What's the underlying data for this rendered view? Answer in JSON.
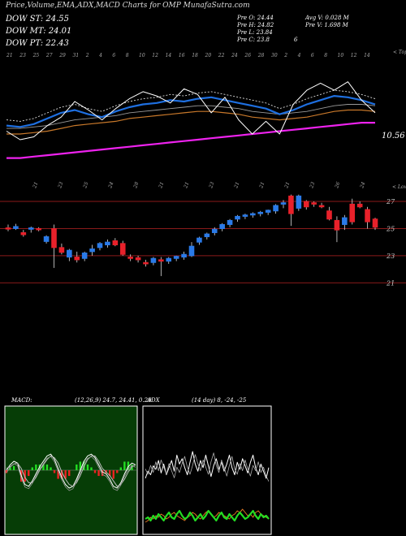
{
  "header": {
    "title": "Price,Volume,EMA,ADX,MACD Charts for OMP MunafaSutra.com",
    "dow_st": "DOW ST: 24.55",
    "dow_mt": "DOW MT: 24.01",
    "dow_pt": "DOW PT: 22.43",
    "pre_o": "Pre   O: 24.44",
    "pre_h": "Pre   H: 24.82",
    "pre_l": "Pre   L: 23.84",
    "pre_c": "Pre   C: 23.8",
    "pre_c_suffix": "6",
    "avg_v": "Avg V: 0.028  M",
    "pre_v": "Pre   V: 1.698  M"
  },
  "colors": {
    "dow_st": "#aaaaaa",
    "dow_mt": "#dddddd",
    "dow_pt": "#ff44ff",
    "ema_blue": "#1e6fe0",
    "ema_orange": "#c8782a",
    "ema_magenta": "#ee22ee",
    "bull": "#2a7ae8",
    "bear": "#e8212a",
    "grid": "#8b1a1a",
    "macd_bg": "#063d06",
    "macd_pos": "#22dd22",
    "macd_neg": "#ee2222",
    "adx_green": "#22dd22",
    "adx_orange": "#dd7722"
  },
  "ema_panel": {
    "top_axis_label": "< Tops",
    "bottom_axis_label": "< Lows",
    "price_label": "10.56",
    "top_dates": [
      "21",
      "23",
      "25",
      "27",
      "29",
      "31",
      "2",
      "4",
      "6",
      "8",
      "10",
      "12",
      "14",
      "16",
      "18",
      "20",
      "22",
      "24",
      "26",
      "28",
      "30",
      "2",
      "4",
      "6",
      "8",
      "10",
      "12",
      "14"
    ],
    "bottom_dates": [
      "21",
      "23",
      "25",
      "24",
      "28",
      "21",
      "21",
      "23",
      "21",
      "21",
      "21",
      "23",
      "26",
      "24"
    ],
    "series_blue": [
      10.4,
      10.3,
      10.5,
      10.9,
      11.3,
      11.5,
      11.2,
      11.0,
      11.4,
      11.7,
      11.9,
      12.0,
      12.2,
      12.1,
      12.3,
      12.4,
      12.2,
      12.0,
      11.8,
      11.6,
      11.2,
      11.5,
      11.9,
      12.2,
      12.5,
      12.4,
      12.2,
      11.9
    ],
    "series_orange": [
      9.8,
      9.8,
      9.9,
      10.0,
      10.2,
      10.4,
      10.5,
      10.6,
      10.7,
      10.9,
      11.0,
      11.1,
      11.2,
      11.3,
      11.4,
      11.4,
      11.3,
      11.2,
      11.0,
      10.9,
      10.8,
      10.9,
      11.0,
      11.2,
      11.4,
      11.5,
      11.5,
      11.4
    ],
    "series_magenta": [
      8.1,
      8.1,
      8.2,
      8.3,
      8.4,
      8.5,
      8.6,
      8.7,
      8.8,
      8.9,
      9.0,
      9.1,
      9.2,
      9.3,
      9.4,
      9.5,
      9.6,
      9.7,
      9.8,
      9.9,
      10.0,
      10.1,
      10.2,
      10.3,
      10.4,
      10.5,
      10.6,
      10.6
    ],
    "series_white": [
      10.0,
      9.4,
      9.6,
      10.4,
      11.0,
      12.1,
      11.5,
      10.8,
      11.6,
      12.3,
      12.8,
      12.5,
      12.0,
      13.0,
      12.6,
      11.3,
      12.4,
      10.8,
      9.8,
      10.7,
      9.8,
      11.9,
      12.9,
      13.4,
      12.9,
      13.5,
      12.2,
      11.3
    ]
  },
  "candles": [
    {
      "o": 25.05,
      "h": 25.3,
      "l": 24.8,
      "c": 25.0
    },
    {
      "o": 25.0,
      "h": 25.35,
      "l": 24.9,
      "c": 25.15
    },
    {
      "o": 24.7,
      "h": 24.9,
      "l": 24.4,
      "c": 24.55
    },
    {
      "o": 24.95,
      "h": 25.15,
      "l": 24.7,
      "c": 25.05
    },
    {
      "o": 25.0,
      "h": 25.1,
      "l": 24.8,
      "c": 24.95
    },
    {
      "o": 24.05,
      "h": 24.5,
      "l": 23.9,
      "c": 24.4
    },
    {
      "o": 25.0,
      "h": 25.3,
      "l": 22.1,
      "c": 23.6
    },
    {
      "o": 23.6,
      "h": 23.9,
      "l": 23.1,
      "c": 23.25
    },
    {
      "o": 22.9,
      "h": 23.5,
      "l": 22.6,
      "c": 23.4
    },
    {
      "o": 22.9,
      "h": 23.3,
      "l": 22.5,
      "c": 22.7
    },
    {
      "o": 22.8,
      "h": 23.3,
      "l": 22.6,
      "c": 23.2
    },
    {
      "o": 23.3,
      "h": 23.8,
      "l": 23.0,
      "c": 23.5
    },
    {
      "o": 23.6,
      "h": 24.0,
      "l": 23.4,
      "c": 23.9
    },
    {
      "o": 23.8,
      "h": 24.2,
      "l": 23.6,
      "c": 24.0
    },
    {
      "o": 24.1,
      "h": 24.3,
      "l": 23.7,
      "c": 23.8
    },
    {
      "o": 23.9,
      "h": 24.1,
      "l": 23.0,
      "c": 23.1
    },
    {
      "o": 22.9,
      "h": 23.1,
      "l": 22.6,
      "c": 22.8
    },
    {
      "o": 22.85,
      "h": 23.0,
      "l": 22.5,
      "c": 22.7
    },
    {
      "o": 22.5,
      "h": 22.7,
      "l": 22.2,
      "c": 22.4
    },
    {
      "o": 22.5,
      "h": 22.9,
      "l": 22.3,
      "c": 22.8
    },
    {
      "o": 22.7,
      "h": 22.9,
      "l": 21.5,
      "c": 22.6
    },
    {
      "o": 22.6,
      "h": 22.9,
      "l": 22.4,
      "c": 22.8
    },
    {
      "o": 22.8,
      "h": 23.0,
      "l": 22.6,
      "c": 22.95
    },
    {
      "o": 22.9,
      "h": 23.3,
      "l": 22.7,
      "c": 23.1
    },
    {
      "o": 23.0,
      "h": 24.0,
      "l": 22.9,
      "c": 23.7
    },
    {
      "o": 24.0,
      "h": 24.4,
      "l": 23.8,
      "c": 24.3
    },
    {
      "o": 24.4,
      "h": 24.7,
      "l": 24.2,
      "c": 24.6
    },
    {
      "o": 24.7,
      "h": 25.1,
      "l": 24.5,
      "c": 24.95
    },
    {
      "o": 25.0,
      "h": 25.4,
      "l": 24.8,
      "c": 25.3
    },
    {
      "o": 25.3,
      "h": 25.7,
      "l": 25.1,
      "c": 25.6
    },
    {
      "o": 25.7,
      "h": 26.0,
      "l": 25.5,
      "c": 25.9
    },
    {
      "o": 25.9,
      "h": 26.1,
      "l": 25.7,
      "c": 26.0
    },
    {
      "o": 26.0,
      "h": 26.2,
      "l": 25.8,
      "c": 26.1
    },
    {
      "o": 26.1,
      "h": 26.3,
      "l": 25.9,
      "c": 26.2
    },
    {
      "o": 26.2,
      "h": 26.4,
      "l": 26.0,
      "c": 26.35
    },
    {
      "o": 26.3,
      "h": 26.8,
      "l": 26.1,
      "c": 26.7
    },
    {
      "o": 26.8,
      "h": 27.1,
      "l": 26.5,
      "c": 26.9
    },
    {
      "o": 27.4,
      "h": 27.5,
      "l": 25.2,
      "c": 26.1
    },
    {
      "o": 26.5,
      "h": 27.5,
      "l": 26.3,
      "c": 27.4
    },
    {
      "o": 27.0,
      "h": 27.1,
      "l": 26.4,
      "c": 26.6
    },
    {
      "o": 26.9,
      "h": 27.0,
      "l": 26.6,
      "c": 26.8
    },
    {
      "o": 26.7,
      "h": 26.9,
      "l": 26.5,
      "c": 26.6
    },
    {
      "o": 26.3,
      "h": 26.6,
      "l": 25.6,
      "c": 25.7
    },
    {
      "o": 25.6,
      "h": 25.9,
      "l": 24.0,
      "c": 24.9
    },
    {
      "o": 25.3,
      "h": 26.0,
      "l": 24.9,
      "c": 25.8
    },
    {
      "o": 26.8,
      "h": 27.2,
      "l": 25.3,
      "c": 25.5
    },
    {
      "o": 26.8,
      "h": 27.0,
      "l": 26.5,
      "c": 26.6
    },
    {
      "o": 26.4,
      "h": 26.6,
      "l": 25.0,
      "c": 25.5
    },
    {
      "o": 25.7,
      "h": 25.8,
      "l": 24.9,
      "c": 25.1
    }
  ],
  "price_axis": {
    "ticks": [
      27,
      25,
      23,
      21
    ]
  },
  "macd_panel": {
    "label": "MACD:",
    "params": "(12,26,9) 24.7, 24.41, 0.29",
    "line1": [
      0,
      0.3,
      0.5,
      0.4,
      -0.3,
      -0.8,
      -0.9,
      -0.6,
      -0.2,
      0.2,
      0.5,
      0.8,
      0.9,
      0.6,
      0.1,
      -0.4,
      -0.8,
      -1.0,
      -0.9,
      -0.5,
      0.0,
      0.5,
      0.8,
      0.9,
      0.7,
      0.3,
      -0.1,
      -0.2,
      -0.5,
      -0.9,
      -1.0,
      -0.7,
      -0.2,
      0.2,
      0.4,
      0.3
    ],
    "line2": [
      0.1,
      0.2,
      0.35,
      0.4,
      0.1,
      -0.4,
      -0.7,
      -0.7,
      -0.4,
      0.0,
      0.3,
      0.6,
      0.8,
      0.7,
      0.4,
      -0.1,
      -0.5,
      -0.8,
      -0.9,
      -0.7,
      -0.3,
      0.2,
      0.6,
      0.8,
      0.8,
      0.5,
      0.1,
      -0.1,
      -0.3,
      -0.6,
      -0.9,
      -0.8,
      -0.5,
      -0.1,
      0.2,
      0.3
    ],
    "histogram": [
      -0.1,
      0.1,
      0.15,
      0.0,
      -0.4,
      -0.4,
      -0.2,
      0.1,
      0.2,
      0.2,
      0.2,
      0.2,
      0.1,
      -0.1,
      -0.3,
      -0.3,
      -0.3,
      -0.2,
      0.0,
      0.2,
      0.3,
      0.3,
      0.2,
      0.1,
      -0.1,
      -0.2,
      -0.2,
      -0.1,
      -0.2,
      -0.3,
      -0.1,
      0.1,
      0.3,
      0.3,
      0.2,
      0.0
    ]
  },
  "adx_panel": {
    "label": "ADX",
    "params": "(14 day) 8, -24, -25",
    "plus_di": [
      20,
      24,
      22,
      27,
      25,
      30,
      23,
      28,
      22,
      26,
      30,
      24,
      33,
      28,
      31,
      26,
      22,
      29,
      35,
      28,
      24,
      30,
      26,
      33,
      27,
      21,
      27,
      31,
      25,
      29,
      24,
      28,
      33,
      26,
      22,
      29,
      25,
      31,
      27,
      23,
      29,
      33,
      26,
      22,
      28,
      24,
      20,
      26
    ],
    "minus_di": [
      28,
      25,
      30,
      26,
      32,
      27,
      33,
      29,
      25,
      31,
      27,
      23,
      29,
      26,
      31,
      35,
      29,
      25,
      30,
      36,
      31,
      27,
      33,
      29,
      25,
      32,
      37,
      30,
      26,
      33,
      29,
      24,
      30,
      35,
      28,
      25,
      31,
      27,
      33,
      28,
      24,
      30,
      27,
      32,
      26,
      29,
      24,
      21
    ],
    "adx_green": [
      8,
      9,
      7,
      10,
      8,
      11,
      9,
      7,
      10,
      12,
      9,
      8,
      11,
      13,
      10,
      8,
      9,
      12,
      10,
      7,
      9,
      11,
      8,
      10,
      13,
      11,
      9,
      7,
      10,
      12,
      9,
      8,
      11,
      9,
      7,
      10,
      12,
      10,
      8,
      9,
      11,
      13,
      10,
      8,
      11,
      9,
      10,
      8
    ],
    "adx_orange": [
      6,
      7,
      9,
      8,
      10,
      9,
      11,
      10,
      8,
      9,
      11,
      12,
      10,
      9,
      8,
      7,
      9,
      10,
      12,
      11,
      9,
      8,
      10,
      12,
      13,
      11,
      9,
      10,
      12,
      11,
      10,
      9,
      8,
      10,
      11,
      13,
      12,
      14,
      12,
      10,
      11,
      9,
      12,
      13,
      11,
      10,
      9,
      8
    ]
  }
}
